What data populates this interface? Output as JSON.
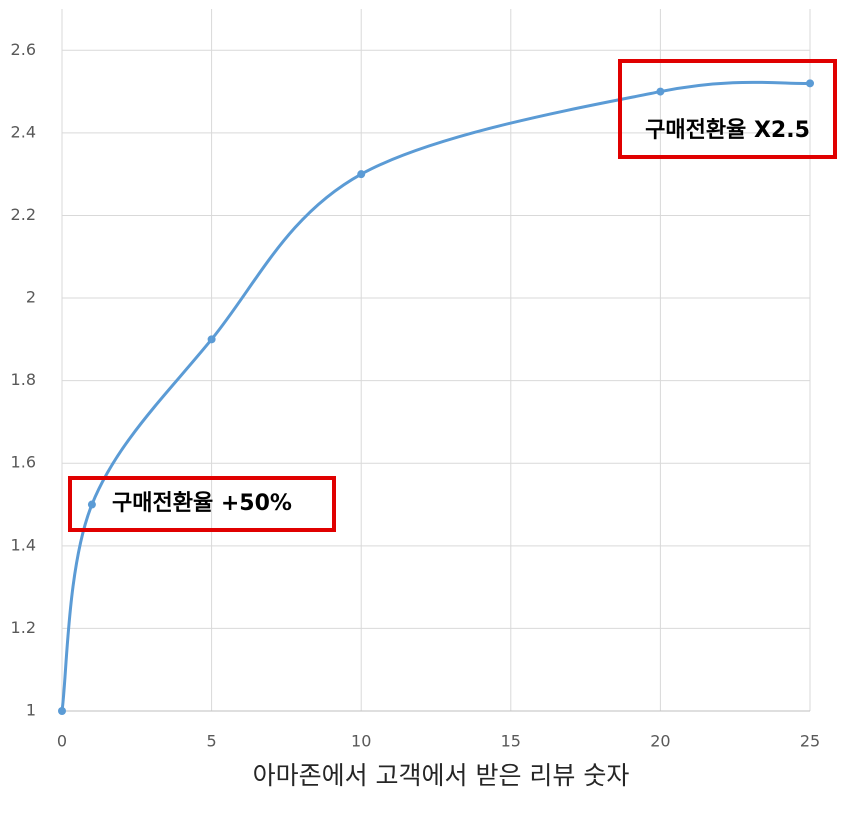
{
  "chart_data": {
    "type": "line",
    "x_label": "아마존에서 고객에서 받은 리뷰 숫자",
    "x": [
      0,
      1,
      5,
      10,
      20,
      25
    ],
    "series": [
      {
        "name": "구매전환율",
        "color": "#5b9bd5",
        "values": [
          1,
          1.5,
          1.9,
          2.3,
          2.5,
          2.52
        ]
      }
    ],
    "xlim": [
      0,
      25
    ],
    "xticks": [
      0,
      5,
      10,
      15,
      20,
      25
    ],
    "ylim": [
      1,
      2.7
    ],
    "yticks": [
      1,
      1.2,
      1.4,
      1.6,
      1.8,
      2,
      2.2,
      2.4,
      2.6
    ],
    "grid": true,
    "smooth": true,
    "annotations": [
      "구매전환율 +50%",
      "구매전환율 X2.5"
    ],
    "annotation_color": "#e00000"
  }
}
